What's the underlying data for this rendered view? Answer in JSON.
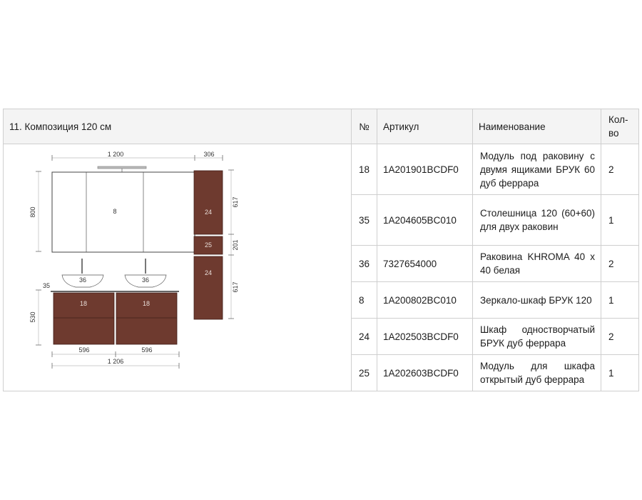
{
  "composition": {
    "title": "11. Композиция 120 см"
  },
  "headers": {
    "num": "№",
    "article": "Артикул",
    "name": "Наименование",
    "qty": "Кол-во"
  },
  "rows": [
    {
      "num": "18",
      "article": "1A201901BCDF0",
      "name": "Модуль под раковину с двумя ящиками БРУК 60 дуб феррара",
      "qty": "2"
    },
    {
      "num": "35",
      "article": "1A204605BC010",
      "name": "Столешница 120 (60+60) для двух раковин",
      "qty": "1"
    },
    {
      "num": "36",
      "article": "7327654000",
      "name": "Раковина KHROMA 40 x 40 белая",
      "qty": "2"
    },
    {
      "num": "8",
      "article": "1A200802BC010",
      "name": "Зеркало-шкаф БРУК 120",
      "qty": "1"
    },
    {
      "num": "24",
      "article": "1A202503BCDF0",
      "name": "Шкаф одностворчатый БРУК дуб феррара",
      "qty": "2"
    },
    {
      "num": "25",
      "article": "1A202603BCDF0",
      "name": "Модуль для шкафа открытый дуб феррара",
      "qty": "1"
    }
  ],
  "drawing": {
    "dim_width_top": "1 200",
    "dim_column_width": "306",
    "dim_height_mirror": "800",
    "dim_cabinet_top": "617",
    "dim_open_module": "201",
    "dim_cabinet_bottom": "617",
    "dim_countertop": "35",
    "dim_vanity_height": "530",
    "dim_module_left": "596",
    "dim_module_right": "596",
    "dim_width_total": "1 206",
    "label_mirror": "8",
    "label_sink_left": "36",
    "label_sink_right": "36",
    "label_vanity_left": "18",
    "label_vanity_right": "18",
    "label_cabinet_top": "24",
    "label_open_module": "25",
    "label_cabinet_bottom": "24",
    "colors": {
      "wood": "#6e3a2f",
      "line": "#555555"
    }
  }
}
